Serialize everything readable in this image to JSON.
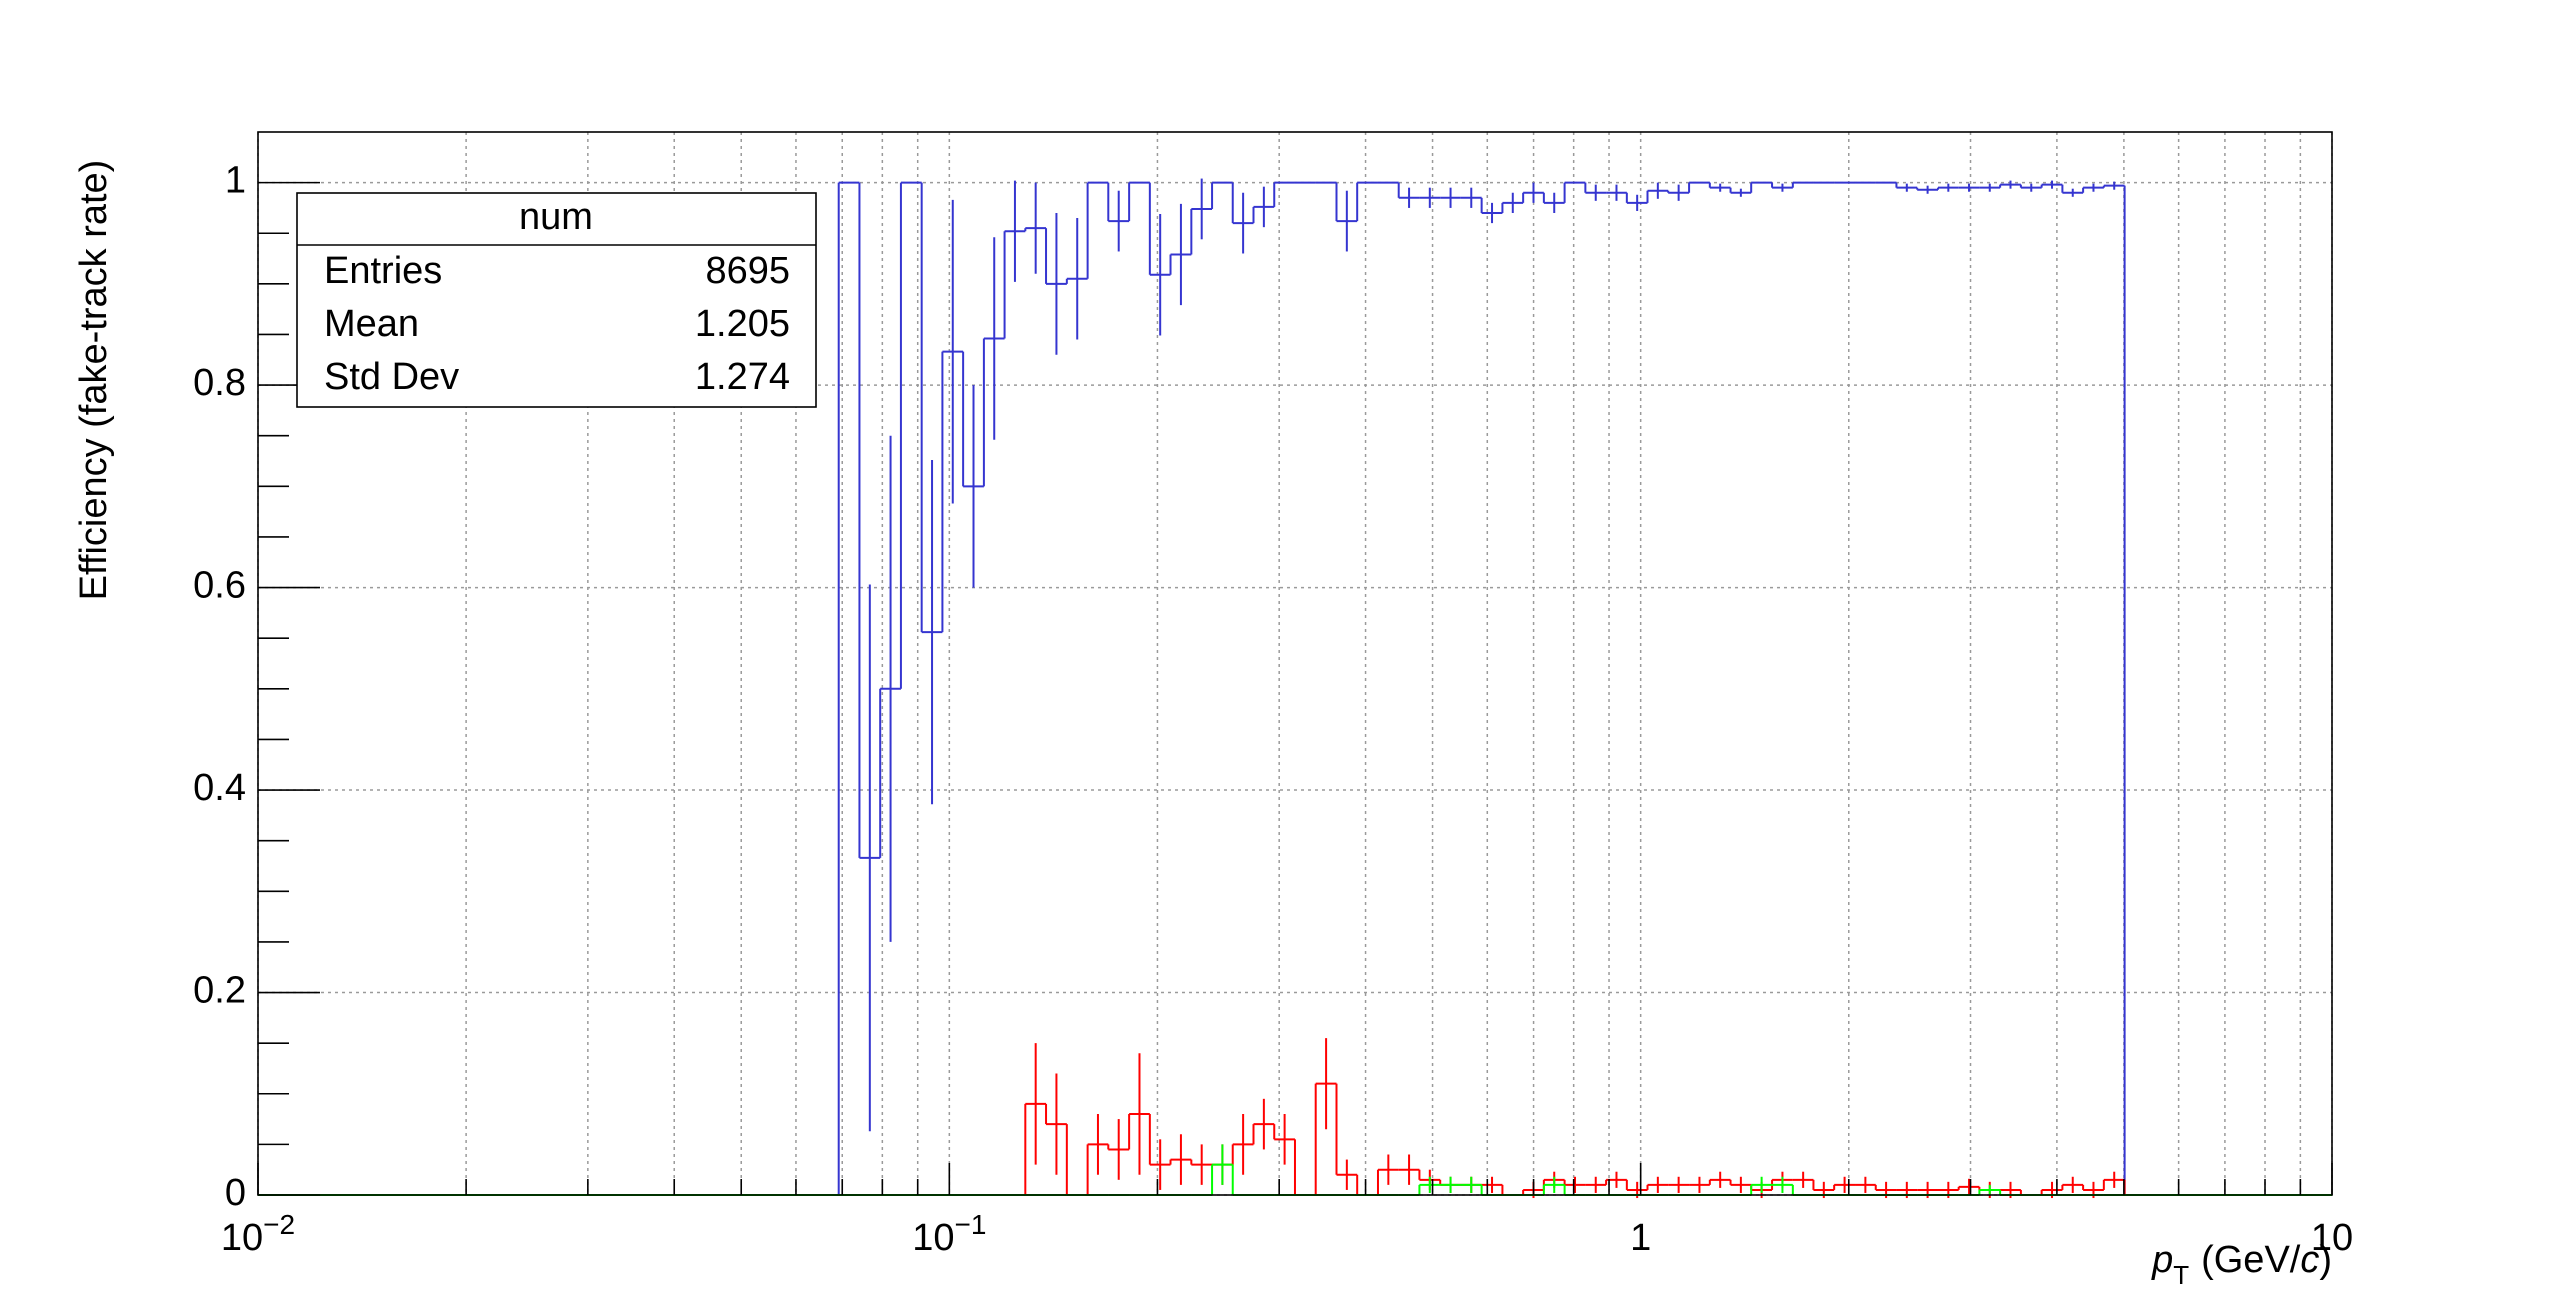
{
  "chart_data": {
    "type": "histogram",
    "ylabel": "Efficiency (fake-track rate)",
    "xlabel": {
      "symbol": "p",
      "subscript": "T",
      "unit_pre": "(GeV/",
      "unit_var": "c",
      "unit_post": ")"
    },
    "xscale": "log",
    "xlim": [
      0.01,
      10
    ],
    "ylim": [
      0,
      1.05
    ],
    "xticks": [
      {
        "value": 0.01,
        "label": "10",
        "exponent": "−2"
      },
      {
        "value": 0.1,
        "label": "10",
        "exponent": "−1"
      },
      1,
      10
    ],
    "xminor_ticks": [
      0.02,
      0.03,
      0.04,
      0.05,
      0.06,
      0.07,
      0.08,
      0.09,
      0.2,
      0.3,
      0.4,
      0.5,
      0.6,
      0.7,
      0.8,
      0.9,
      2,
      3,
      4,
      5,
      6,
      7,
      8,
      9
    ],
    "yticks": [
      0,
      0.2,
      0.4,
      0.6,
      0.8,
      1
    ],
    "yminor_ticks": [
      0.05,
      0.1,
      0.15,
      0.25,
      0.3,
      0.35,
      0.45,
      0.5,
      0.55,
      0.65,
      0.7,
      0.75,
      0.85,
      0.9,
      0.95
    ],
    "grid": true,
    "bins": [
      0.01,
      0.01072,
      0.01148,
      0.0123,
      0.01318,
      0.01413,
      0.01514,
      0.01622,
      0.01738,
      0.01862,
      0.01995,
      0.02138,
      0.02291,
      0.02455,
      0.0263,
      0.02818,
      0.0302,
      0.03236,
      0.03467,
      0.03715,
      0.03981,
      0.04266,
      0.04571,
      0.04898,
      0.05248,
      0.05623,
      0.06026,
      0.06457,
      0.06918,
      0.07413,
      0.07943,
      0.08511,
      0.0912,
      0.09772,
      0.1047,
      0.1122,
      0.1202,
      0.1288,
      0.138,
      0.1479,
      0.1585,
      0.1698,
      0.182,
      0.195,
      0.2089,
      0.2239,
      0.2399,
      0.257,
      0.2754,
      0.2951,
      0.3162,
      0.3388,
      0.3631,
      0.389,
      0.4169,
      0.4467,
      0.4786,
      0.5129,
      0.5495,
      0.5888,
      0.631,
      0.6761,
      0.7244,
      0.7762,
      0.8318,
      0.8913,
      0.955,
      1.023,
      1.096,
      1.175,
      1.259,
      1.349,
      1.445,
      1.549,
      1.66,
      1.778,
      1.905,
      2.042,
      2.188,
      2.344,
      2.512,
      2.692,
      2.884,
      3.09,
      3.311,
      3.548,
      3.802,
      4.074,
      4.365,
      4.677,
      5.012,
      5.37,
      5.754,
      6.166,
      6.607,
      7.079,
      7.586,
      8.128,
      8.71,
      9.333,
      10
    ],
    "series": [
      {
        "color": "#3535d0",
        "values": [
          0,
          0,
          0,
          0,
          0,
          0,
          0,
          0,
          0,
          0,
          0,
          0,
          0,
          0,
          0,
          0,
          0,
          0,
          0,
          0,
          0,
          0,
          0,
          0,
          0,
          0,
          0,
          0,
          1,
          0.333,
          0.5,
          1,
          0.556,
          0.833,
          0.7,
          0.846,
          0.952,
          0.955,
          0.9,
          0.905,
          1,
          0.962,
          1,
          0.909,
          0.929,
          0.974,
          1,
          0.96,
          0.976,
          1,
          1,
          1,
          0.962,
          1,
          1,
          0.985,
          0.985,
          0.985,
          0.985,
          0.97,
          0.98,
          0.99,
          0.98,
          1,
          0.99,
          0.99,
          0.98,
          0.992,
          0.99,
          1,
          0.995,
          0.99,
          1,
          0.995,
          1,
          1,
          1,
          1,
          1,
          0.995,
          0.993,
          0.995,
          0.995,
          0.995,
          0.998,
          0.995,
          0.998,
          0.99,
          0.995,
          0.997,
          0,
          0,
          0,
          0,
          0,
          0,
          0,
          0,
          0,
          0
        ],
        "errors": [
          0,
          0,
          0,
          0,
          0,
          0,
          0,
          0,
          0,
          0,
          0,
          0,
          0,
          0,
          0,
          0,
          0,
          0,
          0,
          0,
          0,
          0,
          0,
          0,
          0,
          0,
          0,
          0,
          0,
          0.27,
          0.25,
          0,
          0.17,
          0.15,
          0.1,
          0.1,
          0.05,
          0.045,
          0.07,
          0.06,
          0,
          0.03,
          0,
          0.06,
          0.05,
          0.03,
          0,
          0.03,
          0.02,
          0,
          0,
          0,
          0.03,
          0,
          0,
          0.01,
          0.01,
          0.01,
          0.01,
          0.01,
          0.01,
          0.01,
          0.01,
          0,
          0.008,
          0.008,
          0.008,
          0.008,
          0.008,
          0,
          0.004,
          0.004,
          0,
          0.004,
          0,
          0,
          0,
          0,
          0,
          0.004,
          0.004,
          0.004,
          0.004,
          0.004,
          0.004,
          0.004,
          0.004,
          0.004,
          0.004,
          0.004,
          0,
          0,
          0,
          0,
          0,
          0,
          0,
          0,
          0,
          0
        ]
      },
      {
        "color": "#ff0000",
        "values": [
          0,
          0,
          0,
          0,
          0,
          0,
          0,
          0,
          0,
          0,
          0,
          0,
          0,
          0,
          0,
          0,
          0,
          0,
          0,
          0,
          0,
          0,
          0,
          0,
          0,
          0,
          0,
          0,
          0,
          0,
          0,
          0,
          0,
          0,
          0,
          0,
          0,
          0.09,
          0.07,
          0,
          0.05,
          0.045,
          0.08,
          0.03,
          0.035,
          0.03,
          0.03,
          0.05,
          0.07,
          0.055,
          0,
          0.11,
          0.02,
          0,
          0.025,
          0.025,
          0.015,
          0.01,
          0.01,
          0.01,
          0,
          0.005,
          0.015,
          0.01,
          0.01,
          0.015,
          0.005,
          0.01,
          0.01,
          0.01,
          0.015,
          0.01,
          0.005,
          0.015,
          0.015,
          0.005,
          0.01,
          0.01,
          0.005,
          0.005,
          0.005,
          0.005,
          0.008,
          0.005,
          0.005,
          0,
          0.005,
          0.01,
          0.005,
          0.015,
          0,
          0,
          0,
          0,
          0,
          0,
          0,
          0,
          0,
          0
        ],
        "errors": [
          0,
          0,
          0,
          0,
          0,
          0,
          0,
          0,
          0,
          0,
          0,
          0,
          0,
          0,
          0,
          0,
          0,
          0,
          0,
          0,
          0,
          0,
          0,
          0,
          0,
          0,
          0,
          0,
          0,
          0,
          0,
          0,
          0,
          0,
          0,
          0,
          0,
          0.06,
          0.05,
          0,
          0.03,
          0.03,
          0.06,
          0.025,
          0.025,
          0.02,
          0.02,
          0.03,
          0.025,
          0.025,
          0,
          0.045,
          0.015,
          0,
          0.015,
          0.015,
          0.01,
          0.008,
          0.008,
          0.008,
          0,
          0.008,
          0.008,
          0.008,
          0.008,
          0.008,
          0.008,
          0.008,
          0.008,
          0.008,
          0.008,
          0.008,
          0.008,
          0.008,
          0.008,
          0.008,
          0.008,
          0.008,
          0.008,
          0.008,
          0.008,
          0.008,
          0.008,
          0.008,
          0.008,
          0,
          0.008,
          0.008,
          0.008,
          0.008,
          0,
          0,
          0,
          0,
          0,
          0,
          0,
          0,
          0,
          0
        ]
      },
      {
        "color": "#00ff00",
        "values": [
          0,
          0,
          0,
          0,
          0,
          0,
          0,
          0,
          0,
          0,
          0,
          0,
          0,
          0,
          0,
          0,
          0,
          0,
          0,
          0,
          0,
          0,
          0,
          0,
          0,
          0,
          0,
          0,
          0,
          0,
          0,
          0,
          0,
          0,
          0,
          0,
          0,
          0,
          0,
          0,
          0,
          0,
          0,
          0,
          0,
          0,
          0.03,
          0,
          0,
          0,
          0,
          0,
          0,
          0,
          0,
          0,
          0.01,
          0.01,
          0.01,
          0,
          0,
          0,
          0.01,
          0,
          0,
          0,
          0,
          0,
          0,
          0,
          0,
          0,
          0.01,
          0.01,
          0,
          0,
          0,
          0,
          0,
          0,
          0,
          0,
          0,
          0.005,
          0,
          0,
          0,
          0,
          0,
          0,
          0,
          0,
          0,
          0,
          0,
          0,
          0,
          0,
          0,
          0
        ],
        "errors": [
          0,
          0,
          0,
          0,
          0,
          0,
          0,
          0,
          0,
          0,
          0,
          0,
          0,
          0,
          0,
          0,
          0,
          0,
          0,
          0,
          0,
          0,
          0,
          0,
          0,
          0,
          0,
          0,
          0,
          0,
          0,
          0,
          0,
          0,
          0,
          0,
          0,
          0,
          0,
          0,
          0,
          0,
          0,
          0,
          0,
          0,
          0.02,
          0,
          0,
          0,
          0,
          0,
          0,
          0,
          0,
          0,
          0.008,
          0.008,
          0.008,
          0,
          0,
          0,
          0.008,
          0,
          0,
          0,
          0,
          0,
          0,
          0,
          0,
          0,
          0.008,
          0.008,
          0,
          0,
          0,
          0,
          0,
          0,
          0,
          0,
          0,
          0.005,
          0,
          0,
          0,
          0,
          0,
          0,
          0,
          0,
          0,
          0,
          0,
          0,
          0,
          0,
          0,
          0
        ]
      }
    ],
    "stats_box": {
      "title": "num",
      "rows": [
        {
          "label": "Entries",
          "value": 8695
        },
        {
          "label": "Mean",
          "value": 1.205
        },
        {
          "label": "Std Dev",
          "value": 1.274
        }
      ]
    }
  }
}
